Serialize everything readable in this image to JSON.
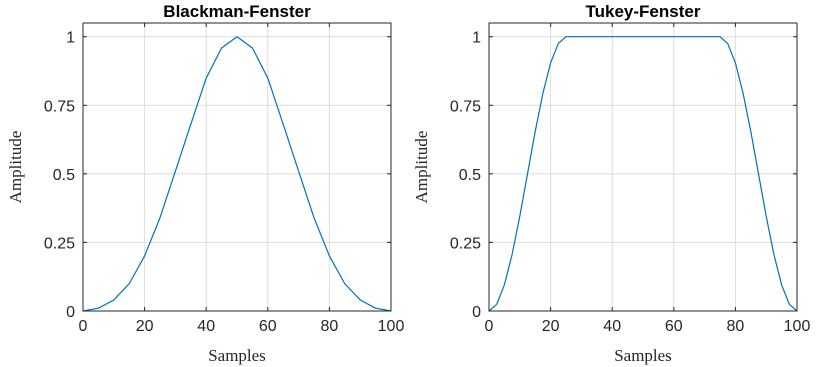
{
  "chart_data": [
    {
      "type": "line",
      "title": "Blackman-Fenster",
      "xlabel": "Samples",
      "ylabel": "Amplitude",
      "xlim": [
        0,
        100
      ],
      "ylim": [
        0,
        1.05
      ],
      "xticks": [
        0,
        20,
        40,
        60,
        80,
        100
      ],
      "xtick_labels": [
        "0",
        "20",
        "40",
        "60",
        "80",
        "100"
      ],
      "yticks": [
        0,
        0.25,
        0.5,
        0.75,
        1
      ],
      "ytick_labels": [
        "0",
        "0.25",
        "0.5",
        "0.75",
        "1"
      ],
      "grid": true,
      "line_color": "#0072BD",
      "series": [
        {
          "x": [
            0,
            5,
            10,
            15,
            20,
            25,
            30,
            35,
            40,
            45,
            50,
            55,
            60,
            65,
            70,
            75,
            80,
            85,
            90,
            95,
            100
          ],
          "y": [
            0,
            0.0103,
            0.0402,
            0.0994,
            0.2008,
            0.34,
            0.5098,
            0.6808,
            0.8492,
            0.9589,
            1.0,
            0.9589,
            0.8492,
            0.6808,
            0.5098,
            0.34,
            0.2008,
            0.0994,
            0.0402,
            0.0103,
            0
          ]
        }
      ]
    },
    {
      "type": "line",
      "title": "Tukey-Fenster",
      "xlabel": "Samples",
      "ylabel": "Amplitude",
      "xlim": [
        0,
        100
      ],
      "ylim": [
        0,
        1.05
      ],
      "xticks": [
        0,
        20,
        40,
        60,
        80,
        100
      ],
      "xtick_labels": [
        "0",
        "20",
        "40",
        "60",
        "80",
        "100"
      ],
      "yticks": [
        0,
        0.25,
        0.5,
        0.75,
        1
      ],
      "ytick_labels": [
        "0",
        "0.25",
        "0.5",
        "0.75",
        "1"
      ],
      "grid": true,
      "line_color": "#0072BD",
      "series": [
        {
          "x": [
            0,
            2.5,
            5,
            7.5,
            10,
            12.5,
            15,
            17.5,
            20,
            22.5,
            25,
            50,
            75,
            77.5,
            80,
            82.5,
            85,
            87.5,
            90,
            92.5,
            95,
            97.5,
            100
          ],
          "y": [
            0,
            0.0245,
            0.0955,
            0.2061,
            0.3455,
            0.5,
            0.6545,
            0.7939,
            0.9045,
            0.9755,
            1.0,
            1.0,
            1.0,
            0.9755,
            0.9045,
            0.7939,
            0.6545,
            0.5,
            0.3455,
            0.2061,
            0.0955,
            0.0245,
            0
          ]
        }
      ]
    }
  ]
}
